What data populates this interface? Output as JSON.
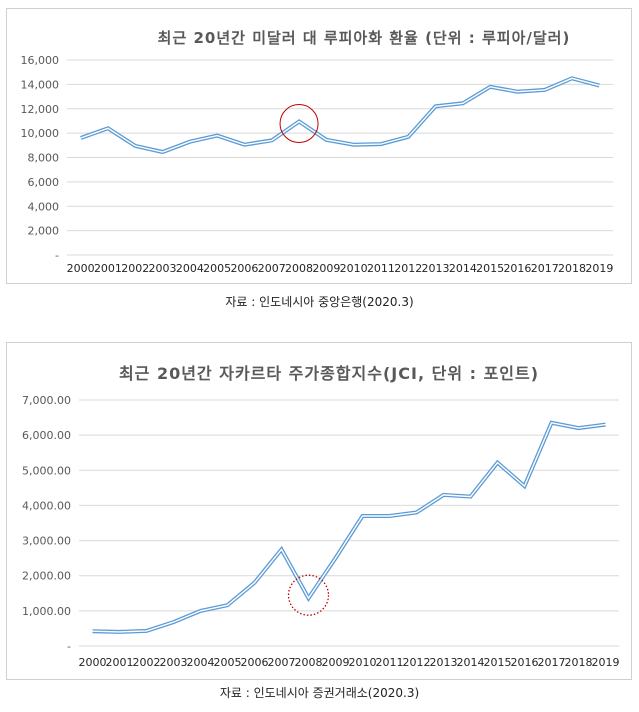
{
  "colors": {
    "line": "#5b9bd5",
    "grid": "#d9d9d9",
    "highlight": "#c00000",
    "text": "#595959"
  },
  "chart_data": [
    {
      "type": "line",
      "title": "최근 20년간 미달러 대 루피아화 환율 (단위 : 루피아/달러)",
      "source": "자료 : 인도네시아 중앙은행(2020.3)",
      "categories": [
        "2000",
        "2001",
        "2002",
        "2003",
        "2004",
        "2005",
        "2006",
        "2007",
        "2008",
        "2009",
        "2010",
        "2011",
        "2012",
        "2013",
        "2014",
        "2015",
        "2016",
        "2017",
        "2018",
        "2019"
      ],
      "series": [
        {
          "name": "환율",
          "values": [
            9600,
            10400,
            8950,
            8450,
            9300,
            9800,
            9050,
            9400,
            10950,
            9450,
            9050,
            9100,
            9700,
            12200,
            12450,
            13800,
            13400,
            13550,
            14500,
            13900
          ]
        }
      ],
      "y_ticks": [
        "-",
        "2,000",
        "4,000",
        "6,000",
        "8,000",
        "10,000",
        "12,000",
        "14,000",
        "16,000"
      ],
      "ylim": [
        0,
        16000
      ],
      "highlight": {
        "category": "2008",
        "style": "solid"
      }
    },
    {
      "type": "line",
      "title": "최근 20년간 자카르타 주가종합지수(JCI, 단위 : 포인트)",
      "source": "자료 : 인도네시아 증권거래소(2020.3)",
      "categories": [
        "2000",
        "2001",
        "2002",
        "2003",
        "2004",
        "2005",
        "2006",
        "2007",
        "2008",
        "2009",
        "2010",
        "2011",
        "2012",
        "2013",
        "2014",
        "2015",
        "2016",
        "2017",
        "2018",
        "2019"
      ],
      "series": [
        {
          "name": "JCI",
          "values": [
            420,
            400,
            430,
            680,
            1000,
            1160,
            1800,
            2750,
            1360,
            2500,
            3700,
            3700,
            3800,
            4300,
            4250,
            5220,
            4550,
            6350,
            6200,
            6300
          ]
        }
      ],
      "y_ticks": [
        "-",
        "1,000.00",
        "2,000.00",
        "3,000.00",
        "4,000.00",
        "5,000.00",
        "6,000.00",
        "7,000.00"
      ],
      "ylim": [
        0,
        7000
      ],
      "highlight": {
        "category": "2008",
        "style": "dotted"
      }
    }
  ]
}
